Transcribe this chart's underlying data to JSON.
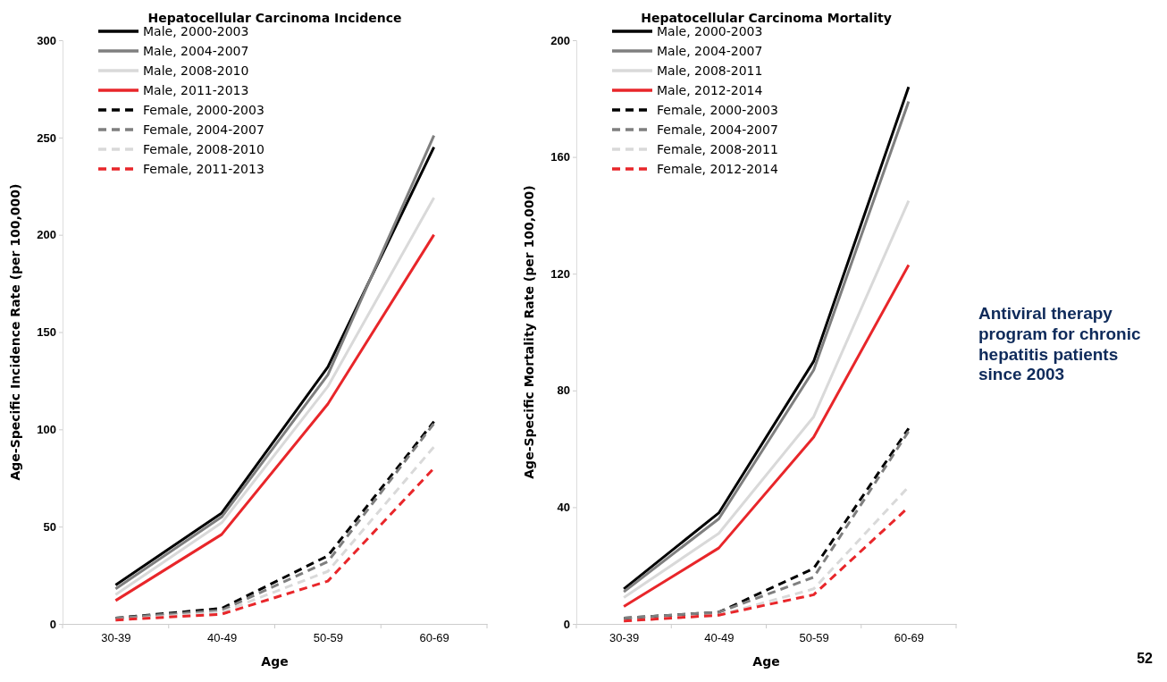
{
  "chart_data": [
    {
      "type": "line",
      "title": "Hepatocellular Carcinoma Incidence",
      "xlabel": "Age",
      "ylabel": "Age-Specific Incidence Rate (per 100,000)",
      "categories": [
        "30-39",
        "40-49",
        "50-59",
        "60-69"
      ],
      "ylim": [
        0,
        300
      ],
      "yticks": [
        0,
        50,
        100,
        150,
        200,
        250,
        300
      ],
      "legend": "top left",
      "grid": false,
      "series": [
        {
          "name": "Male, 2000-2003",
          "color": "#000000",
          "line_style": "solid",
          "values": [
            20,
            57,
            132,
            245
          ]
        },
        {
          "name": "Male, 2004-2007",
          "color": "#7f7f7f",
          "line_style": "solid",
          "values": [
            18,
            55,
            128,
            251
          ]
        },
        {
          "name": "Male, 2008-2010",
          "color": "#d9d9d9",
          "line_style": "solid",
          "values": [
            15,
            52,
            122,
            219
          ]
        },
        {
          "name": "Male, 2011-2013",
          "color": "#e8262a",
          "line_style": "solid",
          "values": [
            12,
            46,
            113,
            200
          ]
        },
        {
          "name": "Female, 2000-2003",
          "color": "#000000",
          "line_style": "dashed",
          "values": [
            3,
            8,
            35,
            104
          ]
        },
        {
          "name": "Female, 2004-2007",
          "color": "#7f7f7f",
          "line_style": "dashed",
          "values": [
            3,
            7,
            32,
            103
          ]
        },
        {
          "name": "Female, 2008-2010",
          "color": "#d9d9d9",
          "line_style": "dashed",
          "values": [
            2,
            6,
            27,
            91
          ]
        },
        {
          "name": "Female, 2011-2013",
          "color": "#e8262a",
          "line_style": "dashed",
          "values": [
            2,
            5,
            22,
            80
          ]
        }
      ]
    },
    {
      "type": "line",
      "title": "Hepatocellular Carcinoma Mortality",
      "xlabel": "Age",
      "ylabel": "Age-Specific Mortality Rate (per 100,000)",
      "categories": [
        "30-39",
        "40-49",
        "50-59",
        "60-69"
      ],
      "ylim": [
        0,
        200
      ],
      "yticks": [
        0,
        40,
        80,
        120,
        160,
        200
      ],
      "legend": "top left",
      "grid": false,
      "annotations": [
        "Antiviral therapy program for chronic hepatitis patients since 2003",
        "52"
      ],
      "series": [
        {
          "name": "Male, 2000-2003",
          "color": "#000000",
          "line_style": "solid",
          "values": [
            12,
            38,
            90,
            184
          ]
        },
        {
          "name": "Male, 2004-2007",
          "color": "#7f7f7f",
          "line_style": "solid",
          "values": [
            11,
            36,
            87,
            179
          ]
        },
        {
          "name": "Male, 2008-2011",
          "color": "#d9d9d9",
          "line_style": "solid",
          "values": [
            9,
            31,
            71,
            145
          ]
        },
        {
          "name": "Male, 2012-2014",
          "color": "#e8262a",
          "line_style": "solid",
          "values": [
            6,
            26,
            64,
            123
          ]
        },
        {
          "name": "Female, 2000-2003",
          "color": "#000000",
          "line_style": "dashed",
          "values": [
            2,
            4,
            19,
            67
          ]
        },
        {
          "name": "Female, 2004-2007",
          "color": "#7f7f7f",
          "line_style": "dashed",
          "values": [
            2,
            4,
            16,
            66
          ]
        },
        {
          "name": "Female, 2008-2011",
          "color": "#d9d9d9",
          "line_style": "dashed",
          "values": [
            1,
            3,
            12,
            47
          ]
        },
        {
          "name": "Female, 2012-2014",
          "color": "#e8262a",
          "line_style": "dashed",
          "values": [
            1,
            3,
            10,
            40
          ]
        }
      ]
    }
  ]
}
